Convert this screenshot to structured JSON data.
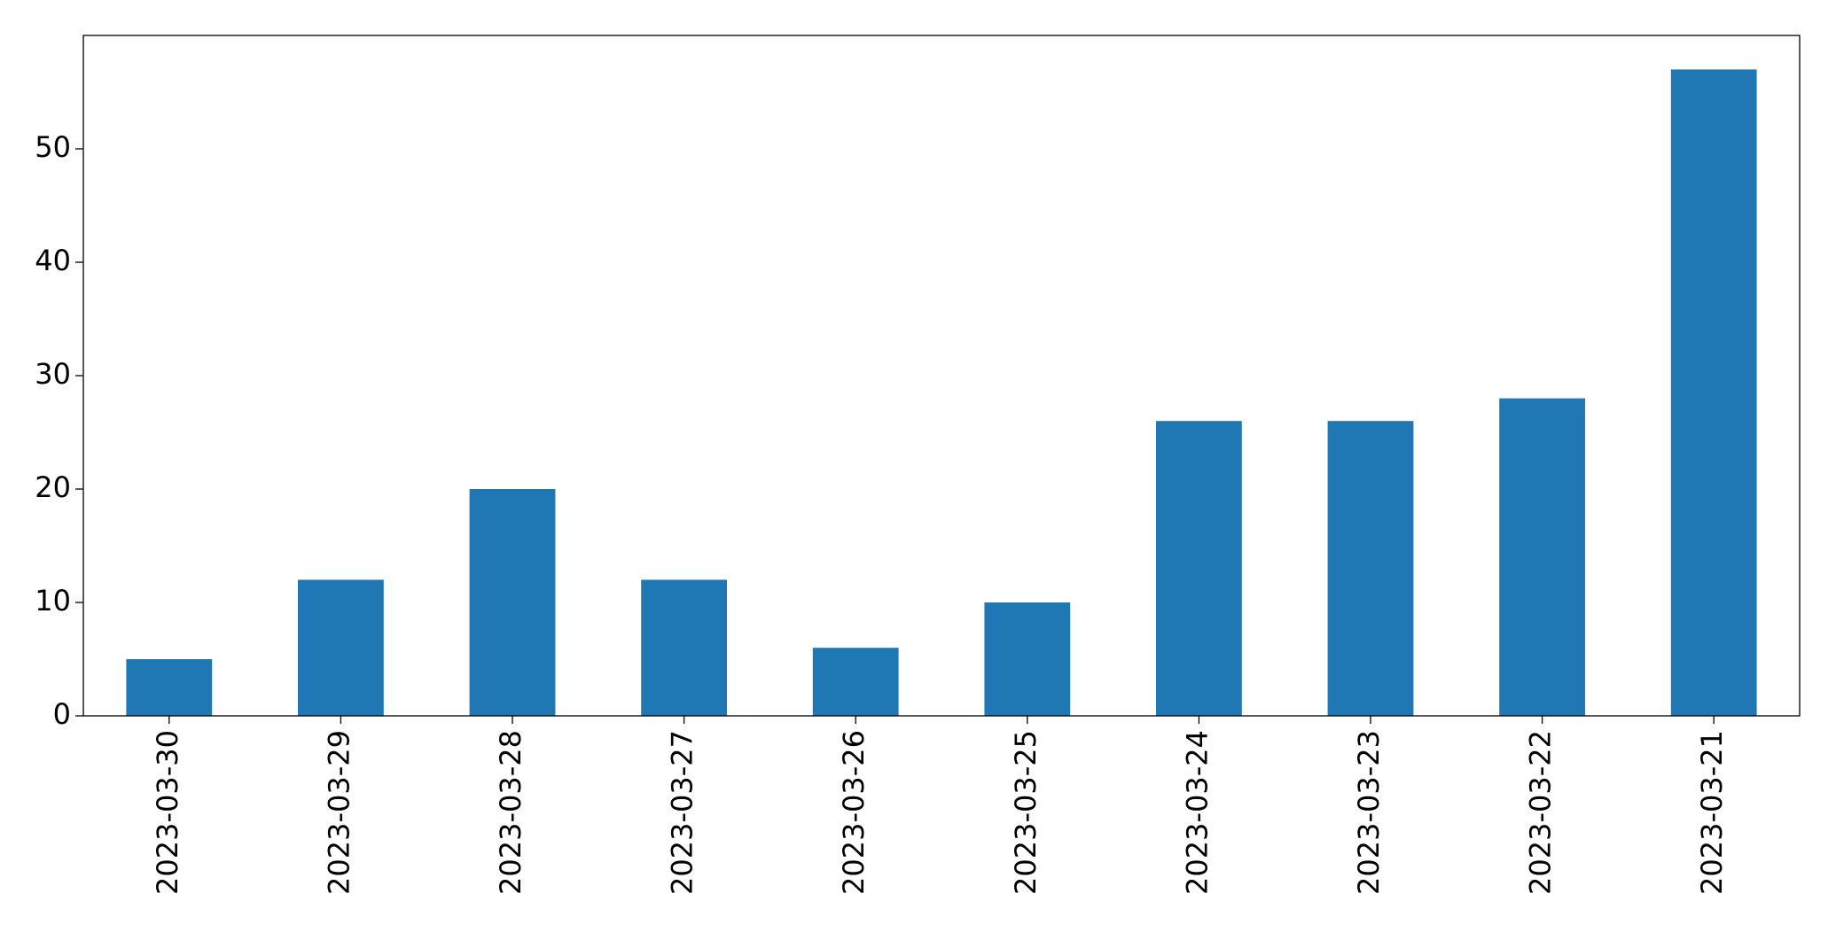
{
  "chart_data": {
    "type": "bar",
    "categories": [
      "2023-03-30",
      "2023-03-29",
      "2023-03-28",
      "2023-03-27",
      "2023-03-26",
      "2023-03-25",
      "2023-03-24",
      "2023-03-23",
      "2023-03-22",
      "2023-03-21"
    ],
    "values": [
      5,
      12,
      20,
      12,
      6,
      10,
      26,
      26,
      28,
      57
    ],
    "color": "#1f77b4",
    "ylim": [
      0,
      60
    ],
    "yticks": [
      0,
      10,
      20,
      30,
      40,
      50
    ],
    "grid": false
  }
}
